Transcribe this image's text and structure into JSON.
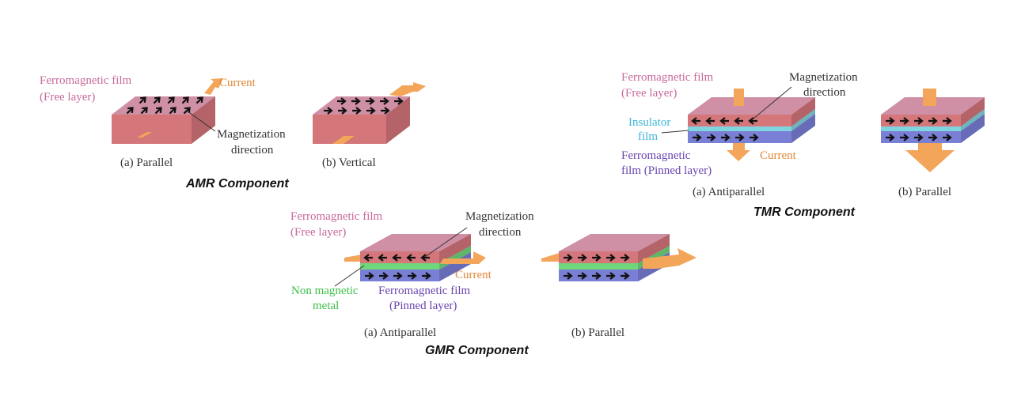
{
  "colors": {
    "free_layer": "#d4767a",
    "free_top": "#cf8fa4",
    "pinned_layer": "#7a7fd6",
    "insulator": "#7fd4e0",
    "nonmagnetic": "#6fd67a",
    "current": "#f3a55a",
    "text_free": "#c8699a",
    "text_current": "#e0883a",
    "text_pinned": "#6a45b0",
    "text_insulator": "#3fb6d6",
    "text_nonmagnetic": "#3cbf4a"
  },
  "amr": {
    "free_label_1": "Ferromagnetic film",
    "free_label_2": "(Free layer)",
    "current": "Current",
    "mag_1": "Magnetization",
    "mag_2": "direction",
    "caption_a": "(a) Parallel",
    "caption_b": "(b) Vertical",
    "title": "AMR Component"
  },
  "tmr": {
    "free_label_1": "Ferromagnetic film",
    "free_label_2": "(Free layer)",
    "mag_1": "Magnetization",
    "mag_2": "direction",
    "insulator_1": "Insulator",
    "insulator_2": "film",
    "pinned_1": "Ferromagnetic",
    "pinned_2": "film (Pinned layer)",
    "current": "Current",
    "caption_a": "(a) Antiparallel",
    "caption_b": "(b) Parallel",
    "title": "TMR Component"
  },
  "gmr": {
    "free_label_1": "Ferromagnetic film",
    "free_label_2": "(Free layer)",
    "mag_1": "Magnetization",
    "mag_2": "direction",
    "nonmag_1": "Non magnetic",
    "nonmag_2": "metal",
    "pinned_1": "Ferromagnetic film",
    "pinned_2": "(Pinned layer)",
    "current": "Current",
    "caption_a": "(a) Antiparallel",
    "caption_b": "(b) Parallel",
    "title": "GMR Component"
  }
}
